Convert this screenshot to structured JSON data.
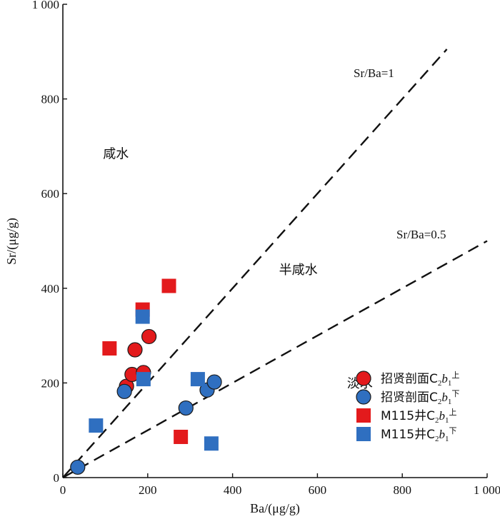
{
  "chart_data": {
    "type": "scatter",
    "xlabel": "Ba/(μg/g)",
    "ylabel": "Sr/(μg/g)",
    "xlim": [
      0,
      1000
    ],
    "ylim": [
      0,
      1000
    ],
    "xticks": [
      0,
      200,
      400,
      600,
      800,
      1000
    ],
    "yticks": [
      0,
      200,
      400,
      600,
      800,
      1000
    ],
    "xtick_labels": [
      "0",
      "200",
      "400",
      "600",
      "800",
      "1 000"
    ],
    "ytick_labels": [
      "0",
      "200",
      "400",
      "600",
      "800",
      "1 000"
    ],
    "grid": false,
    "legend_position": "bottom-right",
    "reference_lines": [
      {
        "label": "Sr/Ba=1",
        "slope": 1,
        "x_end": 905
      },
      {
        "label": "Sr/Ba=0.5",
        "slope": 0.5,
        "x_end": 1000
      }
    ],
    "regions": [
      {
        "label": "咸水",
        "x": 125,
        "y": 675
      },
      {
        "label": "半咸水",
        "x": 555,
        "y": 430
      },
      {
        "label": "淡水",
        "x": 700,
        "y": 190
      }
    ],
    "series": [
      {
        "name": "招贤剖面C2b1上",
        "legend": {
          "main": "招贤剖面C",
          "sub1": "2",
          "ital": "b",
          "sub2": "1",
          "sup": "上"
        },
        "marker": "circle",
        "color": "#e31a1c",
        "points": [
          [
            150,
            193
          ],
          [
            163,
            218
          ],
          [
            170,
            270
          ],
          [
            190,
            222
          ],
          [
            203,
            298
          ]
        ]
      },
      {
        "name": "招贤剖面C2b1下",
        "legend": {
          "main": "招贤剖面C",
          "sub1": "2",
          "ital": "b",
          "sub2": "1",
          "sup": "下"
        },
        "marker": "circle",
        "color": "#2f6fc0",
        "points": [
          [
            35,
            22
          ],
          [
            145,
            182
          ],
          [
            290,
            147
          ],
          [
            340,
            185
          ],
          [
            357,
            202
          ]
        ]
      },
      {
        "name": "M115井C2b1上",
        "legend": {
          "main": "M115井C",
          "sub1": "2",
          "ital": "b",
          "sub2": "1",
          "sup": "上"
        },
        "marker": "square",
        "color": "#e31a1c",
        "points": [
          [
            110,
            273
          ],
          [
            188,
            355
          ],
          [
            250,
            405
          ],
          [
            278,
            86
          ]
        ]
      },
      {
        "name": "M115井C2b1下",
        "legend": {
          "main": "M115井C",
          "sub1": "2",
          "ital": "b",
          "sub2": "1",
          "sup": "下"
        },
        "marker": "square",
        "color": "#2f6fc0",
        "points": [
          [
            78,
            110
          ],
          [
            188,
            340
          ],
          [
            190,
            208
          ],
          [
            318,
            208
          ],
          [
            350,
            72
          ]
        ]
      }
    ]
  }
}
